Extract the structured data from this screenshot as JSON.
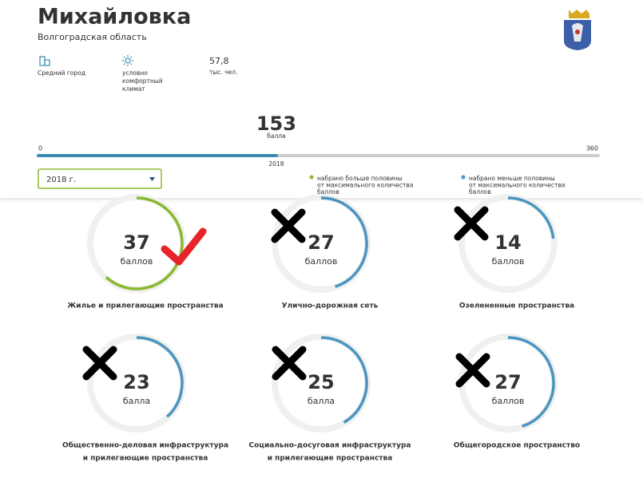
{
  "header": {
    "title": "Михайловка",
    "region": "Волгоградская область"
  },
  "stats": [
    {
      "lines": [
        "Средний город"
      ]
    },
    {
      "lines": [
        "условно",
        "комфортный",
        "климат"
      ]
    },
    {
      "value": "57,8",
      "lines": [
        "тыс. чел."
      ]
    }
  ],
  "score": {
    "value": 153,
    "unit": "балла",
    "min": 0,
    "max": 360,
    "year": "2018"
  },
  "year_select": "2018 г.",
  "legend": [
    {
      "color": "#8ab82e",
      "lines": [
        "набрано больше половины",
        "от максимального количества",
        "баллов"
      ]
    },
    {
      "color": "#4a95c0",
      "lines": [
        "набрано меньше половины",
        "от максимального количества",
        "баллов"
      ]
    }
  ],
  "categories": [
    {
      "score": 37,
      "unit": "баллов",
      "color": "#8ab82e",
      "name": [
        "Жилье и прилегающие пространства"
      ]
    },
    {
      "score": 27,
      "unit": "баллов",
      "color": "#4a95c0",
      "name": [
        "Улично-дорожная сеть"
      ]
    },
    {
      "score": 14,
      "unit": "баллов",
      "color": "#4a95c0",
      "name": [
        "Озелененные пространства"
      ]
    },
    {
      "score": 23,
      "unit": "балла",
      "color": "#4a95c0",
      "name": [
        "Общественно-деловая инфраструктура",
        "и прилегающие пространства"
      ]
    },
    {
      "score": 25,
      "unit": "балла",
      "color": "#4a95c0",
      "name": [
        "Социально-досуговая инфраструктура",
        "и прилегающие пространства"
      ]
    },
    {
      "score": 27,
      "unit": "баллов",
      "color": "#4a95c0",
      "name": [
        "Общегородское пространство"
      ]
    }
  ]
}
